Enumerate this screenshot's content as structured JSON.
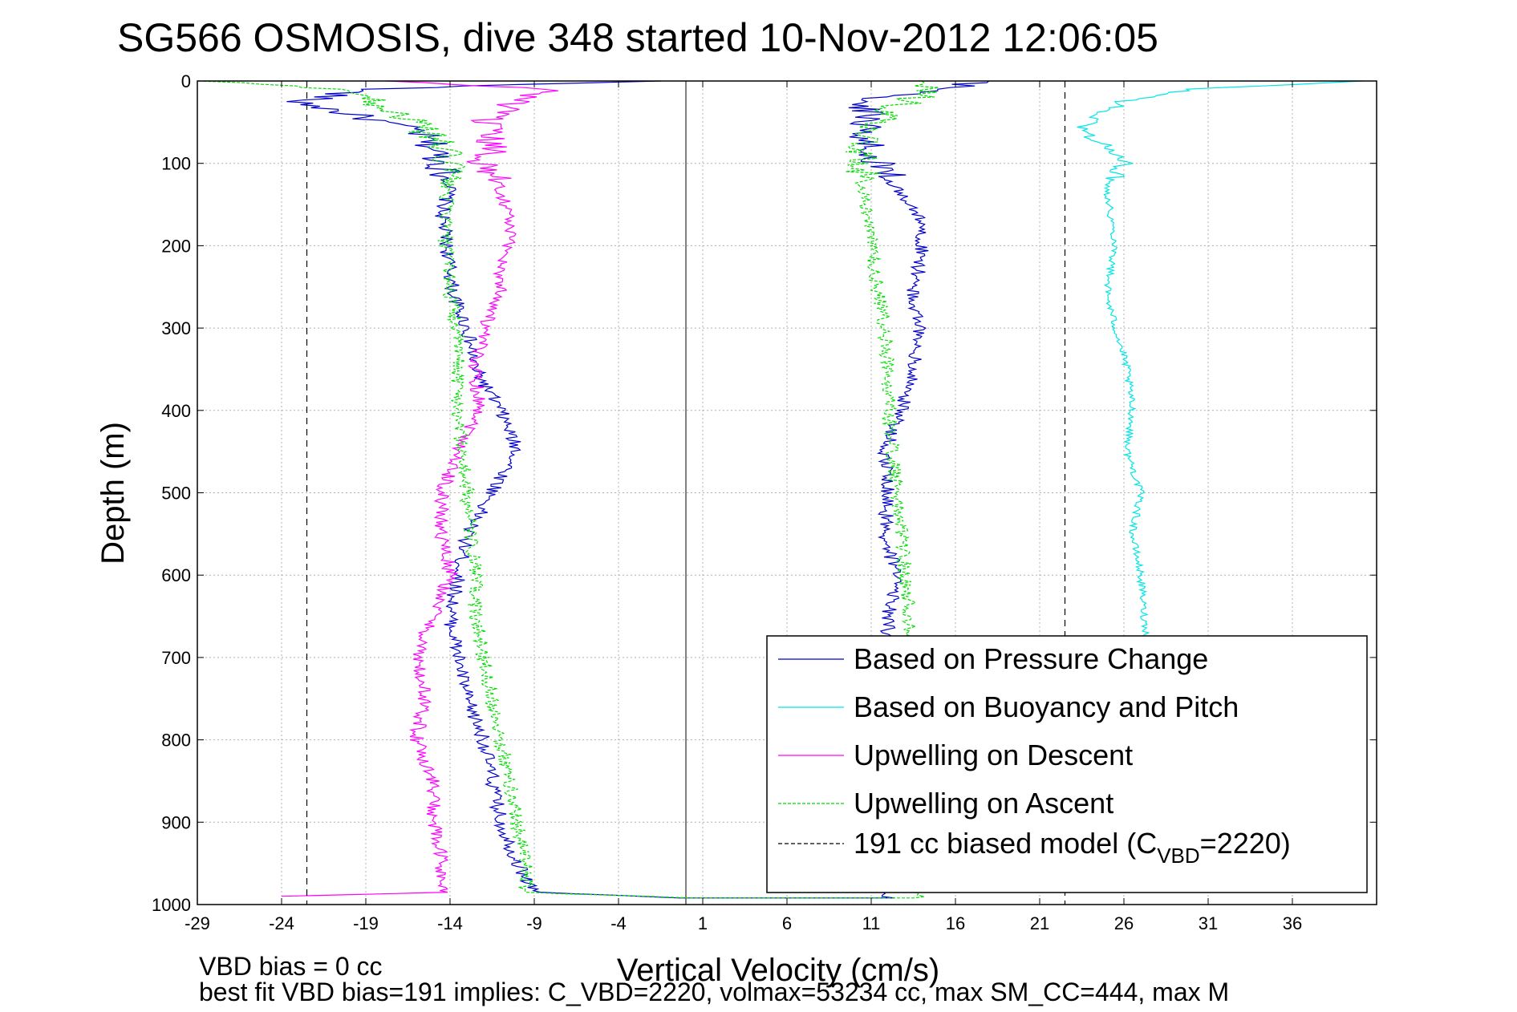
{
  "chart_data": {
    "type": "line",
    "title": "SG566 OSMOSIS, dive 348 started 10-Nov-2012 12:06:05",
    "xlabel": "Vertical Velocity (cm/s)",
    "ylabel": "Depth (m)",
    "xlim": [
      -29,
      41
    ],
    "ylim": [
      1000,
      0
    ],
    "y_inverted": true,
    "grid": true,
    "xticks": [
      -29,
      -24,
      -19,
      -14,
      -9,
      -4,
      1,
      6,
      11,
      16,
      21,
      26,
      31,
      36
    ],
    "yticks": [
      0,
      100,
      200,
      300,
      400,
      500,
      600,
      700,
      800,
      900,
      1000
    ],
    "legend_position": "bottom-right",
    "legend": [
      {
        "label": "Based on Pressure Change",
        "color": "#0000cc",
        "style": "solid"
      },
      {
        "label": "Based on Buoyancy and Pitch",
        "color": "#00e5e5",
        "style": "solid"
      },
      {
        "label": "Upwelling on Descent",
        "color": "#ff00ff",
        "style": "solid"
      },
      {
        "label": "Upwelling on Ascent",
        "color": "#00dd00",
        "style": "dashed"
      },
      {
        "label_main": "191 cc biased model (C",
        "label_sub": "VBD",
        "label_end": "=2220)",
        "color": "#000000",
        "style": "dashed"
      }
    ],
    "series": [
      {
        "name": "Based on Pressure Change",
        "color": "#0000cc",
        "depth": [
          0,
          10,
          25,
          40,
          60,
          80,
          100,
          130,
          160,
          200,
          230,
          260,
          300,
          350,
          400,
          450,
          500,
          550,
          600,
          650,
          700,
          750,
          800,
          850,
          900,
          950,
          985,
          992,
          992,
          985,
          950,
          900,
          850,
          800,
          750,
          700,
          650,
          600,
          550,
          500,
          450,
          400,
          350,
          300,
          260,
          230,
          200,
          160,
          130,
          100,
          80,
          60,
          40,
          25,
          10,
          0
        ],
        "values": [
          -2,
          -19,
          -23,
          -20,
          -16,
          -15,
          -14.5,
          -14,
          -14.5,
          -14.2,
          -14,
          -13.8,
          -13,
          -12.5,
          -11,
          -10,
          -11.5,
          -13,
          -13.5,
          -14,
          -13.5,
          -13,
          -12,
          -11.5,
          -11,
          -10,
          -9,
          0,
          12,
          11.5,
          12.2,
          12,
          12.3,
          12.8,
          12.5,
          12,
          12,
          12.5,
          11.8,
          12,
          11.8,
          12.8,
          13.5,
          13.8,
          13.5,
          13.8,
          14,
          13.8,
          12.5,
          11.5,
          11,
          10.5,
          11,
          10,
          15,
          18
        ]
      },
      {
        "name": "Based on Buoyancy and Pitch",
        "color": "#00e5e5",
        "depth": [
          0,
          10,
          25,
          40,
          60,
          80,
          100,
          130,
          160,
          200,
          230,
          260,
          300,
          350,
          400,
          450,
          500,
          550,
          600,
          650,
          700,
          750,
          800,
          850,
          900,
          950,
          985
        ],
        "values": [
          40,
          30,
          26,
          24.5,
          23.5,
          25,
          26,
          25,
          25.2,
          25.5,
          25.2,
          25,
          25.5,
          26.2,
          26.5,
          26.2,
          27,
          26.5,
          27,
          27.2,
          27.5,
          27.5,
          27.5,
          27.5,
          27.5,
          27.5,
          27.5
        ]
      },
      {
        "name": "Upwelling on Descent",
        "color": "#ff00ff",
        "depth": [
          0,
          10,
          25,
          40,
          60,
          80,
          100,
          130,
          160,
          200,
          230,
          260,
          300,
          350,
          400,
          450,
          500,
          550,
          600,
          650,
          700,
          750,
          800,
          850,
          900,
          950,
          985,
          990
        ],
        "values": [
          -18,
          -8,
          -10,
          -11.5,
          -12,
          -11.5,
          -12,
          -11,
          -10.5,
          -10.5,
          -11,
          -11,
          -12,
          -12.5,
          -12.2,
          -13.5,
          -14.5,
          -14.5,
          -14,
          -15,
          -16,
          -15.5,
          -16,
          -15,
          -15,
          -14.5,
          -14.5,
          -24
        ]
      },
      {
        "name": "Upwelling on Ascent",
        "color": "#00dd00",
        "depth": [
          0,
          10,
          25,
          40,
          60,
          80,
          100,
          130,
          160,
          200,
          230,
          260,
          300,
          350,
          400,
          450,
          500,
          550,
          600,
          650,
          700,
          750,
          800,
          850,
          900,
          950,
          985,
          992,
          992,
          985,
          950,
          900,
          850,
          800,
          750,
          700,
          650,
          600,
          550,
          500,
          450,
          400,
          350,
          300,
          260,
          230,
          200,
          160,
          130,
          100,
          80,
          60,
          40,
          25,
          10,
          0
        ],
        "values": [
          -29,
          -20,
          -18.5,
          -17,
          -15.5,
          -14.5,
          -14,
          -14.2,
          -14.2,
          -14.3,
          -14,
          -14,
          -13.6,
          -13.5,
          -13.5,
          -13.3,
          -13,
          -12.8,
          -12.5,
          -12.5,
          -12,
          -11.5,
          -11,
          -10.5,
          -10,
          -9.5,
          -9.5,
          0,
          14,
          13.5,
          13.5,
          13.5,
          13.5,
          13.5,
          13.5,
          13.5,
          13.3,
          13,
          12.8,
          12.5,
          12.3,
          12,
          12,
          11.8,
          11.5,
          11.2,
          11,
          10.8,
          10.5,
          10.5,
          10.5,
          11,
          12,
          13,
          15,
          14
        ]
      },
      {
        "name": "191 cc biased model (CVBD=2220)",
        "color": "#000000",
        "depth": [
          [
            0,
            1000
          ],
          [
            0,
            1000
          ]
        ],
        "values": [
          -22.5,
          22.5
        ]
      }
    ],
    "zero_line_x": 0,
    "footer_line1": "VBD bias = 0 cc",
    "footer_line2": "best fit VBD bias=191 implies: C_VBD=2220, volmax=53234 cc, max SM_CC=444, max M"
  }
}
